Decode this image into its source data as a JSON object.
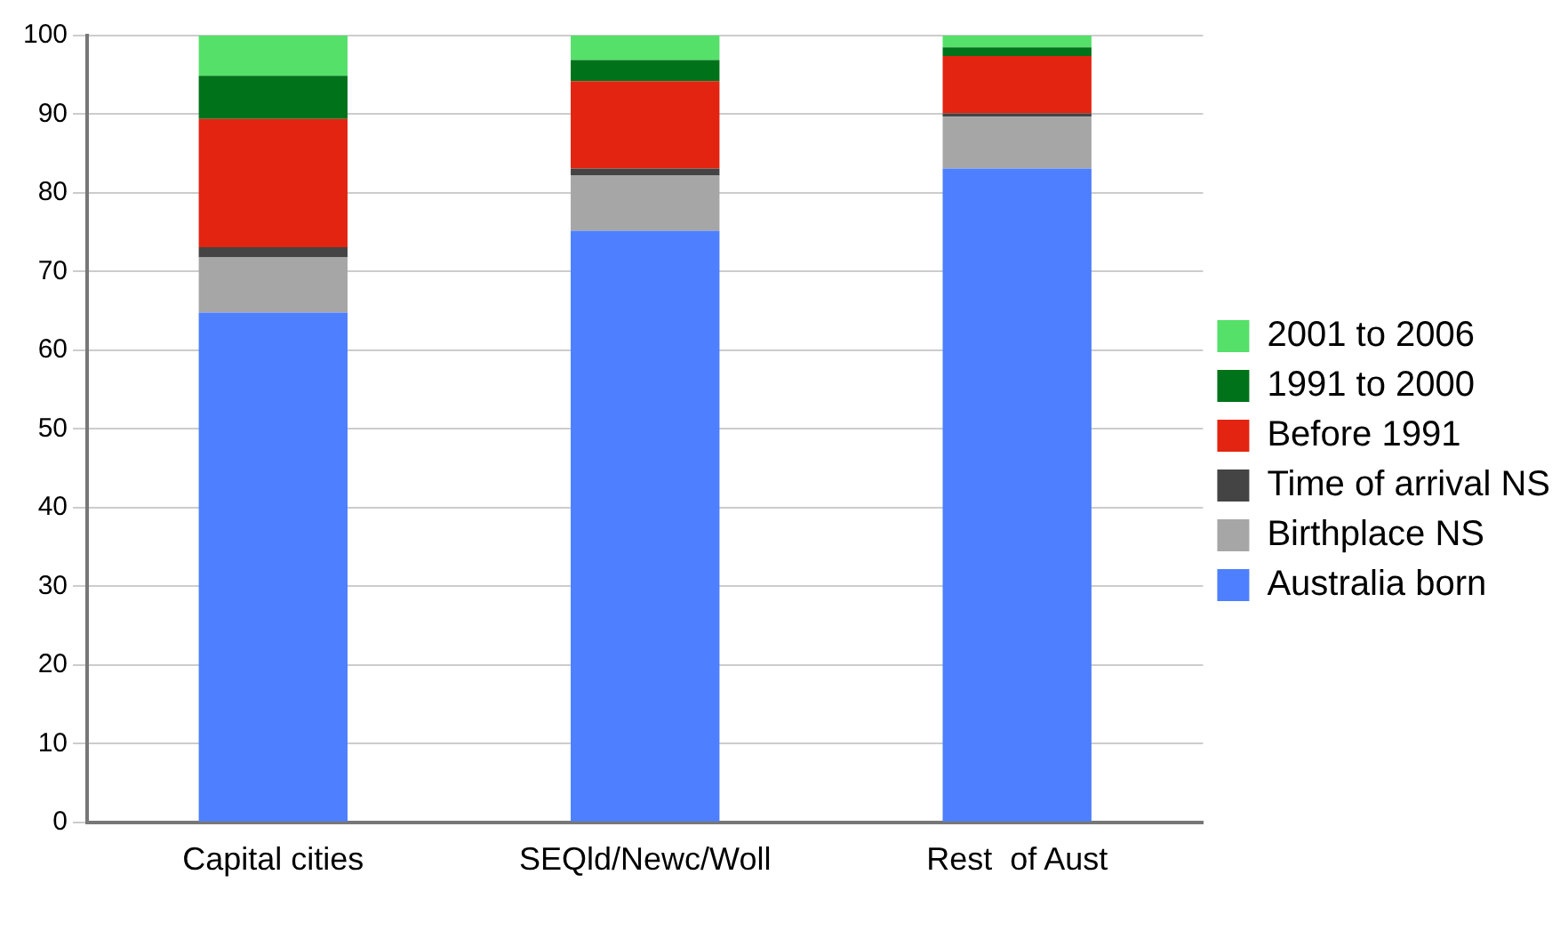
{
  "chart_data": {
    "type": "bar",
    "stacked": true,
    "categories": [
      "Capital cities",
      "SEQld/Newc/Woll",
      "Rest  of Aust"
    ],
    "series": [
      {
        "name": "Australia born",
        "color": "#4d7fff",
        "values": [
          64.8,
          75.2,
          83.1
        ]
      },
      {
        "name": "Birthplace NS",
        "color": "#a6a6a6",
        "values": [
          7.0,
          7.0,
          6.6
        ]
      },
      {
        "name": "Time of arrival NS",
        "color": "#444444",
        "values": [
          1.3,
          0.9,
          0.4
        ]
      },
      {
        "name": "Before 1991",
        "color": "#e22410",
        "values": [
          16.3,
          11.1,
          7.3
        ]
      },
      {
        "name": "1991 to 2000",
        "color": "#00731a",
        "values": [
          5.5,
          2.7,
          1.1
        ]
      },
      {
        "name": "2001 to 2006",
        "color": "#55e06a",
        "values": [
          5.1,
          3.1,
          1.5
        ]
      }
    ],
    "ylim": [
      0,
      100
    ],
    "yticks": [
      0,
      10,
      20,
      30,
      40,
      50,
      60,
      70,
      80,
      90,
      100
    ],
    "grid": "y",
    "legend": "right"
  }
}
